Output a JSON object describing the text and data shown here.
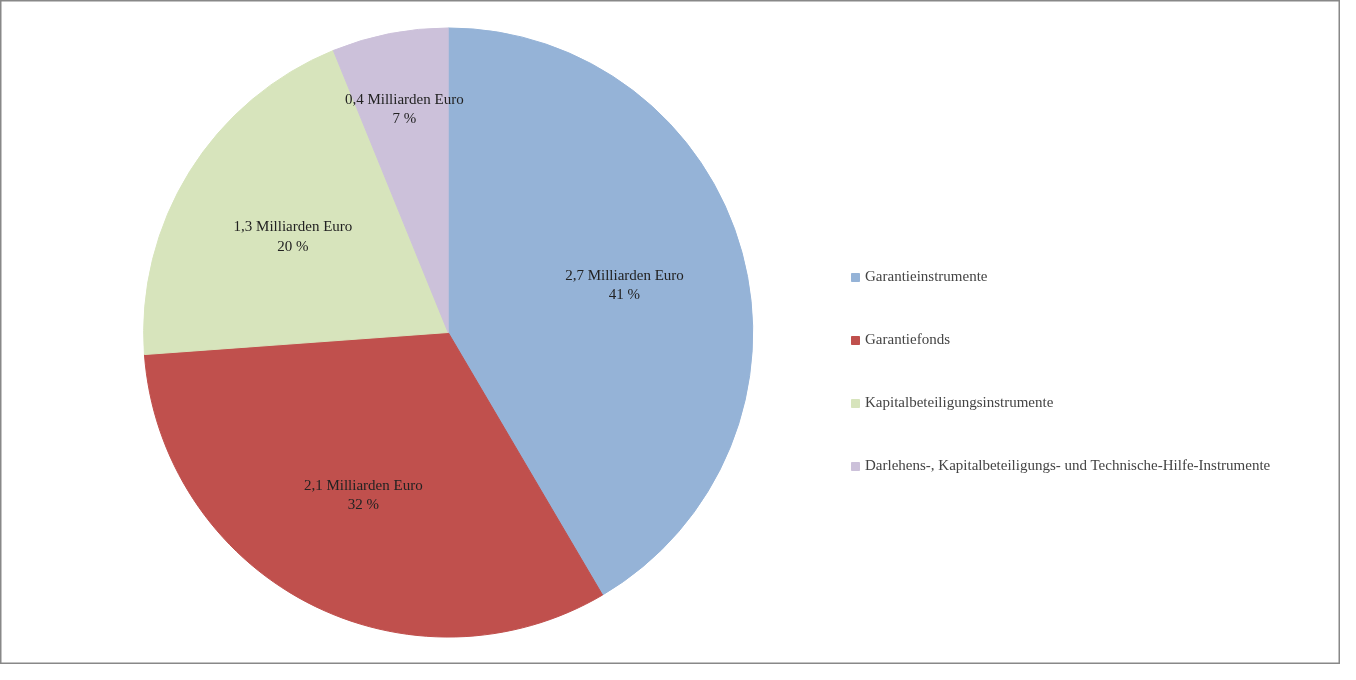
{
  "chart_data": {
    "type": "pie",
    "categories": [
      "Garantieinstrumente",
      "Garantiefonds",
      "Kapitalbeteiligungsinstrumente",
      "Darlehens-, Kapitalbeteiligungs- und Technische-Hilfe-Instrumente"
    ],
    "values": [
      2.7,
      2.1,
      1.3,
      0.4
    ],
    "colors": [
      "#95b3d7",
      "#c0504d",
      "#d7e4bc",
      "#ccc1da"
    ],
    "value_labels": [
      "2,7 Milliarden Euro\n41 %",
      "2,1 Milliarden Euro\n32 %",
      "1,3 Milliarden Euro\n20 %",
      "0,4 Milliarden Euro\n7 %"
    ],
    "legend": "right"
  }
}
